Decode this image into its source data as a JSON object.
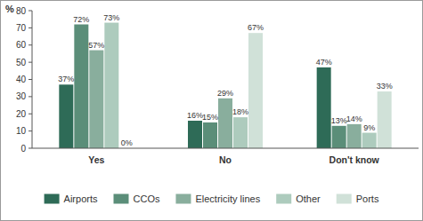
{
  "chart_data": {
    "type": "bar",
    "y_label": "%",
    "categories": [
      "Yes",
      "No",
      "Don't know"
    ],
    "series": [
      {
        "name": "Airports",
        "color": "#2e6b57",
        "values": [
          37,
          16,
          47
        ],
        "value_labels": [
          "37%",
          "16%",
          "47%"
        ]
      },
      {
        "name": "CCOs",
        "color": "#5b8e79",
        "values": [
          72,
          15,
          13
        ],
        "value_labels": [
          "72%",
          "15%",
          "13%"
        ]
      },
      {
        "name": "Electricity lines",
        "color": "#89ae9d",
        "values": [
          57,
          29,
          14
        ],
        "value_labels": [
          "57%",
          "29%",
          "14%"
        ]
      },
      {
        "name": "Other",
        "color": "#adcbbd",
        "values": [
          73,
          18,
          9
        ],
        "value_labels": [
          "73%",
          "18%",
          "9%"
        ]
      },
      {
        "name": "Ports",
        "color": "#d0e1d8",
        "values": [
          0,
          67,
          33
        ],
        "value_labels": [
          "0%",
          "67%",
          "33%"
        ]
      }
    ],
    "ylim": [
      0,
      80
    ],
    "yticks": [
      0,
      10,
      20,
      30,
      40,
      50,
      60,
      70,
      80
    ],
    "grid": false,
    "legend": "bottom",
    "data_labels": true
  }
}
